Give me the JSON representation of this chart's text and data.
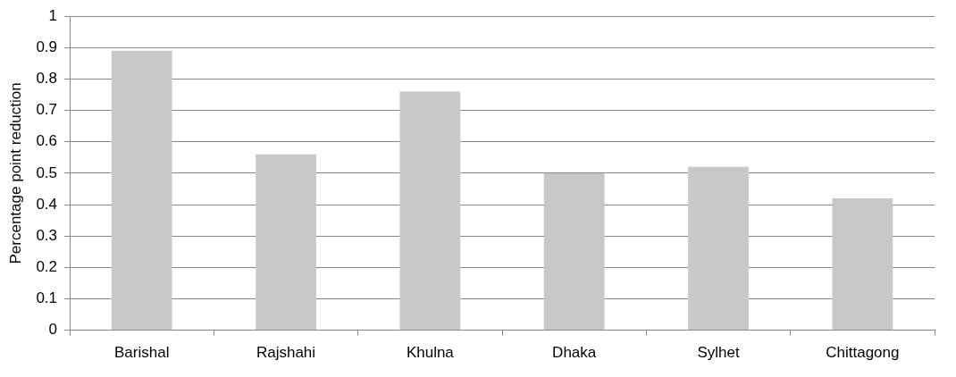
{
  "chart_data": {
    "type": "bar",
    "ylabel": "Percentage point reduction",
    "categories": [
      "Barishal",
      "Rajshahi",
      "Khulna",
      "Dhaka",
      "Sylhet",
      "Chittagong"
    ],
    "values": [
      0.89,
      0.56,
      0.76,
      0.5,
      0.52,
      0.42
    ],
    "color": "#c8c8c8",
    "ylim": [
      0,
      1
    ],
    "yticks": [
      0,
      0.1,
      0.2,
      0.3,
      0.4,
      0.5,
      0.6,
      0.7,
      0.8,
      0.9,
      1
    ],
    "grid": "y",
    "legend": false
  }
}
